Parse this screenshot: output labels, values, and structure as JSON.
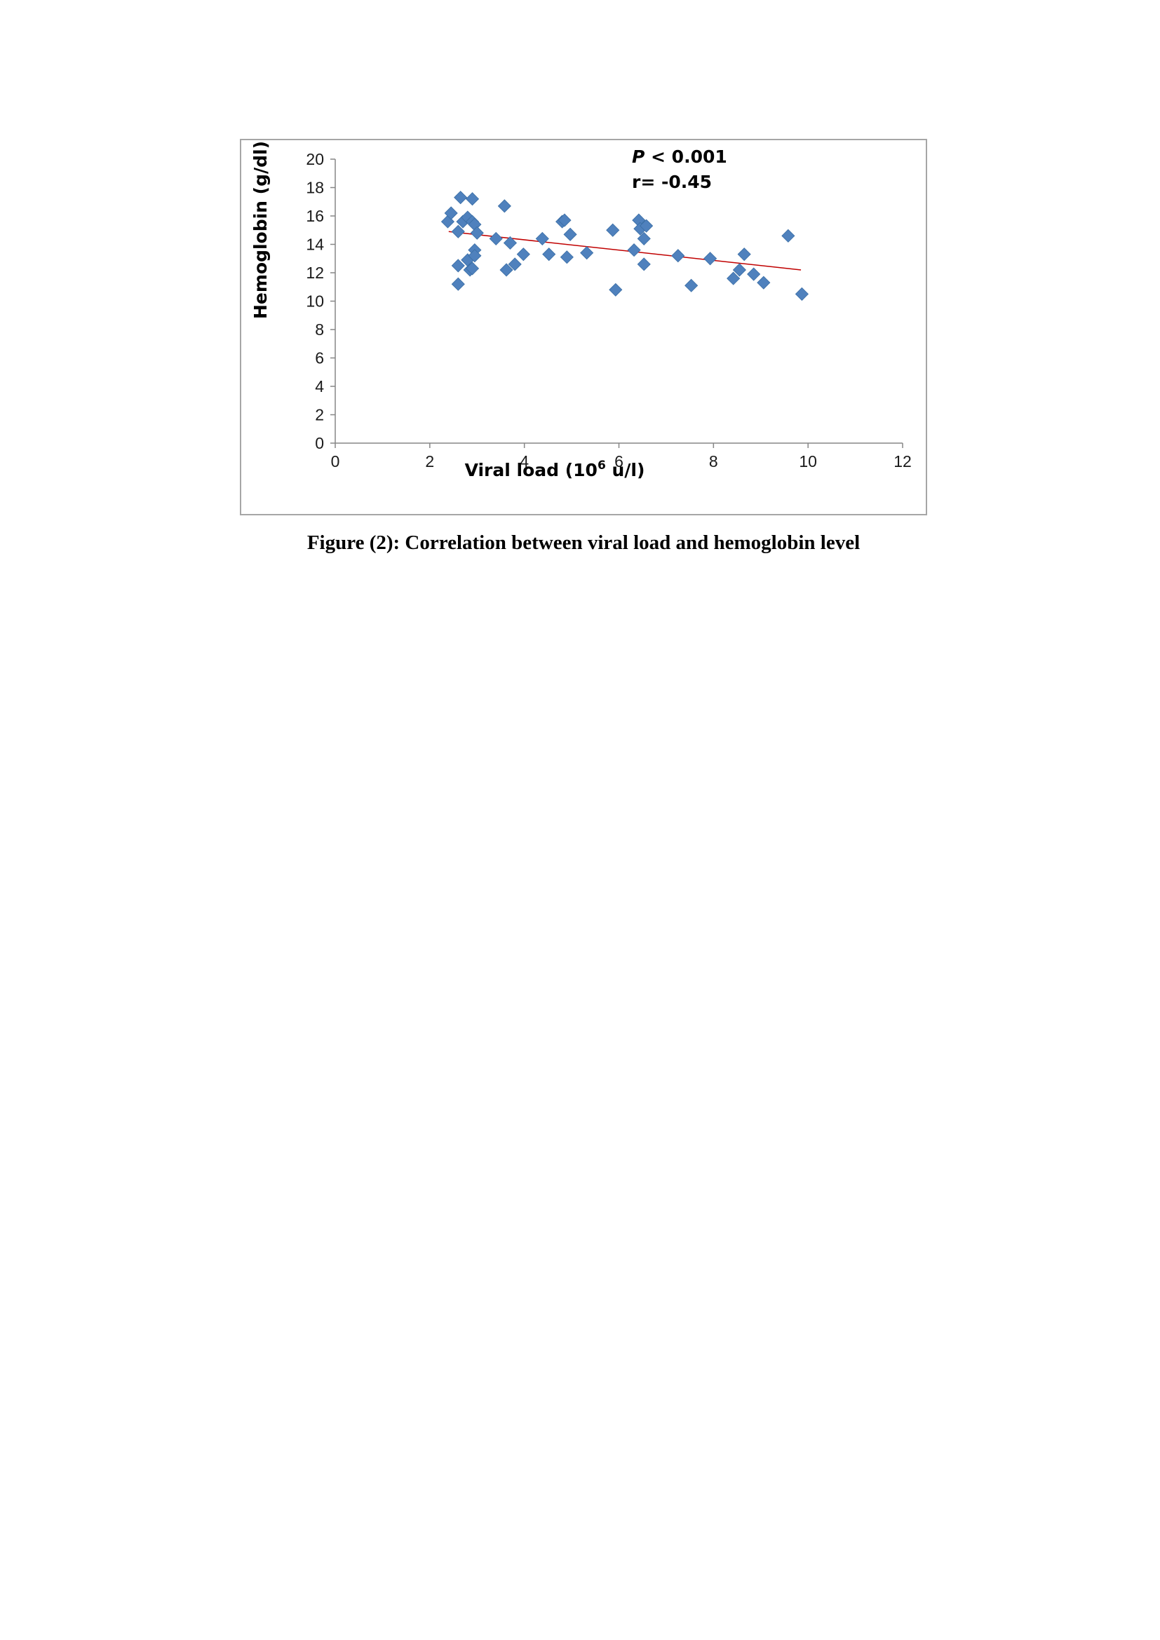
{
  "caption": "Figure (2): Correlation between viral load and hemoglobin level",
  "colors": {
    "marker": "#4f81bd",
    "marker_edge": "#3a6ea5",
    "trendline": "#c00000",
    "axis": "#868686",
    "frame": "#a6a6a6"
  },
  "chart_data": {
    "type": "scatter",
    "title": "",
    "xlabel": "Viral load (10",
    "xlabel_sup": "6",
    "xlabel_suffix": " u/l)",
    "ylabel": "Hemoglobin (g/dl)",
    "xlim": [
      0,
      12
    ],
    "ylim": [
      0,
      20
    ],
    "xticks": [
      0,
      2,
      4,
      6,
      8,
      10,
      12
    ],
    "yticks": [
      0,
      2,
      4,
      6,
      8,
      10,
      12,
      14,
      16,
      18,
      20
    ],
    "grid": false,
    "marker": "diamond",
    "annotations": {
      "p_label": "P",
      "p_value": " < 0.001",
      "r_value": "r= -0.45"
    },
    "trendline": {
      "x": [
        2.4,
        9.85
      ],
      "y": [
        14.9,
        12.2
      ]
    },
    "points": [
      {
        "x": 2.38,
        "y": 15.6
      },
      {
        "x": 2.45,
        "y": 16.2
      },
      {
        "x": 2.6,
        "y": 14.9
      },
      {
        "x": 2.6,
        "y": 12.5
      },
      {
        "x": 2.6,
        "y": 11.2
      },
      {
        "x": 2.65,
        "y": 17.3
      },
      {
        "x": 2.7,
        "y": 15.6
      },
      {
        "x": 2.8,
        "y": 15.9
      },
      {
        "x": 2.8,
        "y": 12.9
      },
      {
        "x": 2.85,
        "y": 12.2
      },
      {
        "x": 2.9,
        "y": 17.2
      },
      {
        "x": 2.9,
        "y": 15.6
      },
      {
        "x": 2.9,
        "y": 12.3
      },
      {
        "x": 2.95,
        "y": 15.4
      },
      {
        "x": 2.95,
        "y": 13.6
      },
      {
        "x": 2.95,
        "y": 13.2
      },
      {
        "x": 3.0,
        "y": 14.8
      },
      {
        "x": 3.4,
        "y": 14.4
      },
      {
        "x": 3.58,
        "y": 16.7
      },
      {
        "x": 3.62,
        "y": 12.2
      },
      {
        "x": 3.7,
        "y": 14.1
      },
      {
        "x": 3.8,
        "y": 12.6
      },
      {
        "x": 3.98,
        "y": 13.3
      },
      {
        "x": 4.38,
        "y": 14.4
      },
      {
        "x": 4.52,
        "y": 13.3
      },
      {
        "x": 4.8,
        "y": 15.6
      },
      {
        "x": 4.85,
        "y": 15.7
      },
      {
        "x": 4.9,
        "y": 13.1
      },
      {
        "x": 4.97,
        "y": 14.7
      },
      {
        "x": 5.32,
        "y": 13.4
      },
      {
        "x": 5.87,
        "y": 15.0
      },
      {
        "x": 5.93,
        "y": 10.8
      },
      {
        "x": 6.32,
        "y": 13.6
      },
      {
        "x": 6.42,
        "y": 15.7
      },
      {
        "x": 6.45,
        "y": 15.1
      },
      {
        "x": 6.53,
        "y": 14.4
      },
      {
        "x": 6.53,
        "y": 12.6
      },
      {
        "x": 6.58,
        "y": 15.3
      },
      {
        "x": 7.25,
        "y": 13.2
      },
      {
        "x": 7.53,
        "y": 11.1
      },
      {
        "x": 7.93,
        "y": 13.0
      },
      {
        "x": 8.42,
        "y": 11.6
      },
      {
        "x": 8.55,
        "y": 12.2
      },
      {
        "x": 8.65,
        "y": 13.3
      },
      {
        "x": 8.85,
        "y": 11.9
      },
      {
        "x": 9.06,
        "y": 11.3
      },
      {
        "x": 9.58,
        "y": 14.6
      },
      {
        "x": 9.87,
        "y": 10.5
      }
    ]
  }
}
